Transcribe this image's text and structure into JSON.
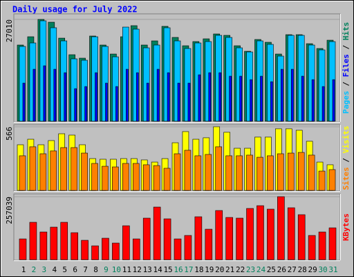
{
  "title": "Daily usage for July 2022",
  "chart_data": [
    {
      "type": "bar",
      "series": [
        {
          "name": "Hits",
          "color": "#00805c",
          "values": [
            20210,
            22410,
            27010,
            26270,
            22040,
            17640,
            16720,
            22600,
            20210,
            17820,
            22410,
            25350,
            20210,
            21310,
            25170,
            22230,
            20020,
            21130,
            21860,
            23150,
            22780,
            20020,
            18550,
            21680,
            20940,
            17820,
            22960,
            22960,
            20570,
            19290,
            21490
          ]
        },
        {
          "name": "Files",
          "color": "#0000ff",
          "values": [
            10100,
            13780,
            14700,
            13780,
            12860,
            8630,
            9190,
            12860,
            10100,
            9190,
            13780,
            12860,
            10100,
            13780,
            12860,
            10100,
            10100,
            12310,
            12860,
            12860,
            11940,
            11940,
            11020,
            11940,
            10470,
            13780,
            13780,
            11940,
            11020,
            9190,
            11020
          ]
        },
        {
          "name": "Pages",
          "color": "#00c0ff",
          "values": [
            19840,
            20760,
            26640,
            24800,
            21310,
            16540,
            16170,
            22410,
            19840,
            17080,
            24980,
            24430,
            19470,
            20210,
            24800,
            21310,
            19290,
            20760,
            21130,
            22780,
            22230,
            19470,
            18370,
            21310,
            20390,
            17270,
            22780,
            22780,
            20210,
            18920,
            21120
          ]
        }
      ],
      "ylim": [
        0,
        27010
      ],
      "yticks": [
        27010
      ]
    },
    {
      "type": "bar",
      "series": [
        {
          "name": "Visits",
          "color": "#ffff00",
          "values": [
            406,
            455,
            406,
            443,
            504,
            492,
            406,
            283,
            277,
            277,
            283,
            283,
            271,
            252,
            283,
            424,
            523,
            455,
            468,
            566,
            517,
            375,
            375,
            474,
            474,
            548,
            548,
            535,
            437,
            252,
            228
          ]
        },
        {
          "name": "Sites",
          "color": "#ff8000",
          "values": [
            308,
            388,
            326,
            351,
            381,
            381,
            332,
            240,
            215,
            209,
            240,
            240,
            228,
            221,
            197,
            326,
            357,
            308,
            320,
            388,
            308,
            308,
            314,
            295,
            308,
            326,
            332,
            338,
            314,
            172,
            185
          ]
        }
      ],
      "ylim": [
        0,
        566
      ],
      "yticks": [
        566
      ]
    },
    {
      "type": "bar",
      "categories": [
        "1",
        "2",
        "3",
        "4",
        "5",
        "6",
        "7",
        "8",
        "9",
        "10",
        "11",
        "12",
        "13",
        "14",
        "15",
        "16",
        "17",
        "18",
        "19",
        "20",
        "21",
        "22",
        "23",
        "24",
        "25",
        "26",
        "27",
        "28",
        "29",
        "30",
        "31"
      ],
      "category_colors": [
        "#000000",
        "#00805c",
        "#00805c",
        "#000000",
        "#000000",
        "#000000",
        "#000000",
        "#000000",
        "#00805c",
        "#00805c",
        "#000000",
        "#000000",
        "#000000",
        "#000000",
        "#000000",
        "#00805c",
        "#00805c",
        "#000000",
        "#000000",
        "#000000",
        "#000000",
        "#000000",
        "#00805c",
        "#00805c",
        "#000000",
        "#000000",
        "#000000",
        "#000000",
        "#000000",
        "#00805c",
        "#00805c"
      ],
      "series": [
        {
          "name": "KBytes",
          "color": "#ff0000",
          "values": [
            84740,
            152530,
            112980,
            132760,
            152530,
            110160,
            79090,
            56490,
            87560,
            67790,
            138400,
            84740,
            169480,
            214670,
            166650,
            84740,
            98860,
            175130,
            124280,
            200550,
            172300,
            169480,
            209020,
            220320,
            206200,
            257039,
            211840,
            183600,
            98860,
            112980,
            129930
          ]
        }
      ],
      "ylim": [
        0,
        257039
      ],
      "yticks": [
        257039
      ]
    }
  ]
}
